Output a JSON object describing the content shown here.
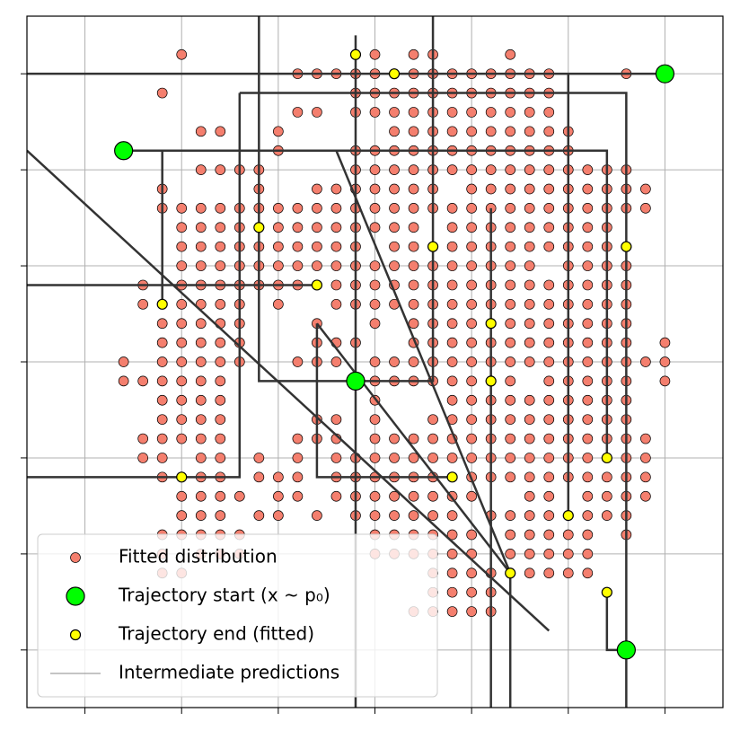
{
  "chart_data": {
    "type": "scatter",
    "xlim": [
      -18,
      18
    ],
    "ylim": [
      -18,
      18
    ],
    "xticks": [
      -15,
      -10,
      -5,
      0,
      5,
      10,
      15
    ],
    "yticks": [
      -15,
      -10,
      -5,
      0,
      5,
      10,
      15
    ],
    "grid": true,
    "legend": "lower left",
    "series": [
      {
        "name": "Fitted distribution",
        "color": "#f47f6e",
        "rows": [
          {
            "y": 16,
            "x": [
              -10,
              0,
              2,
              3,
              7
            ]
          },
          {
            "y": 15,
            "x": [
              -4,
              -3,
              -2,
              -1,
              0,
              2,
              3,
              4,
              5,
              6,
              7,
              8,
              9,
              13
            ]
          },
          {
            "y": 14,
            "x": [
              -11,
              -1,
              0,
              1,
              2,
              3,
              4,
              5,
              6,
              7,
              8,
              9
            ]
          },
          {
            "y": 13,
            "x": [
              -4,
              -3,
              -1,
              0,
              1,
              2,
              3,
              4,
              5,
              6,
              7,
              8,
              9
            ]
          },
          {
            "y": 12,
            "x": [
              -9,
              -8,
              -5,
              1,
              2,
              3,
              4,
              5,
              6,
              7,
              8,
              9,
              10
            ]
          },
          {
            "y": 11,
            "x": [
              -5,
              -1,
              0,
              1,
              2,
              3,
              4,
              5,
              6,
              7,
              8,
              9,
              10
            ]
          },
          {
            "y": 10,
            "x": [
              -9,
              -8,
              -7,
              -6,
              -1,
              0,
              1,
              2,
              3,
              4,
              5,
              6,
              7,
              8,
              9,
              10,
              11,
              12,
              13
            ]
          },
          {
            "y": 9,
            "x": [
              -11,
              -6,
              -3,
              -2,
              -1,
              0,
              1,
              2,
              3,
              5,
              6,
              7,
              8,
              9,
              10,
              11,
              12,
              13,
              14
            ]
          },
          {
            "y": 8,
            "x": [
              -11,
              -10,
              -9,
              -8,
              -7,
              -6,
              -5,
              -4,
              -3,
              -2,
              -1,
              0,
              1,
              2,
              3,
              4,
              5,
              6,
              7,
              8,
              9,
              10,
              11,
              12,
              13,
              14
            ]
          },
          {
            "y": 7,
            "x": [
              -10,
              -9,
              -8,
              -7,
              -5,
              -4,
              -3,
              -2,
              -1,
              0,
              1,
              2,
              4,
              5,
              6,
              7,
              8,
              9,
              10,
              11,
              12
            ]
          },
          {
            "y": 6,
            "x": [
              -10,
              -9,
              -8,
              -7,
              -6,
              -5,
              -4,
              -3,
              -2,
              -1,
              1,
              2,
              4,
              5,
              6,
              7,
              8,
              9,
              10,
              11,
              12,
              13
            ]
          },
          {
            "y": 5,
            "x": [
              -10,
              -9,
              -8,
              -7,
              -6,
              -5,
              -4,
              -3,
              -2,
              -1,
              0,
              1,
              2,
              3,
              4,
              5,
              6,
              7,
              8,
              10,
              11,
              12,
              13
            ]
          },
          {
            "y": 4,
            "x": [
              -12,
              -10,
              -9,
              -8,
              -7,
              -6,
              -5,
              -4,
              -2,
              -1,
              0,
              1,
              2,
              3,
              4,
              5,
              6,
              7,
              8,
              9,
              10,
              11,
              12,
              13
            ]
          },
          {
            "y": 3,
            "x": [
              -12,
              -10,
              -9,
              -8,
              -7,
              -5,
              -2,
              -1,
              0,
              1,
              2,
              3,
              4,
              5,
              6,
              7,
              8,
              9,
              10,
              11,
              12,
              13
            ]
          },
          {
            "y": 2,
            "x": [
              -11,
              -10,
              -9,
              -8,
              -7,
              -3,
              0,
              2,
              3,
              4,
              5,
              7,
              8,
              9,
              10,
              11,
              12,
              13
            ]
          },
          {
            "y": 1,
            "x": [
              -11,
              -10,
              -9,
              -8,
              -7,
              -3,
              -2,
              -1,
              2,
              3,
              4,
              5,
              6,
              7,
              8,
              9,
              10,
              11,
              12,
              13,
              15
            ]
          },
          {
            "y": 0,
            "x": [
              -13,
              -11,
              -10,
              -9,
              -8,
              -7,
              -4,
              -3,
              -2,
              0,
              1,
              2,
              3,
              4,
              5,
              6,
              7,
              8,
              9,
              10,
              11,
              12,
              13,
              14,
              15
            ]
          },
          {
            "y": -1,
            "x": [
              -13,
              -12,
              -11,
              -10,
              -9,
              -8,
              0,
              1,
              2,
              3,
              4,
              5,
              6,
              7,
              9,
              10,
              11,
              12,
              13,
              15
            ]
          },
          {
            "y": -2,
            "x": [
              -11,
              -10,
              -9,
              -8,
              0,
              4,
              5,
              6,
              7,
              8,
              9,
              10,
              11,
              12,
              13
            ]
          },
          {
            "y": -3,
            "x": [
              -11,
              -10,
              -9,
              -8,
              -3,
              -2,
              0,
              3,
              4,
              5,
              6,
              7,
              8,
              9,
              10,
              11,
              12,
              13
            ]
          },
          {
            "y": -4,
            "x": [
              -12,
              -11,
              -10,
              -9,
              -8,
              -4,
              -3,
              -2,
              0,
              1,
              2,
              3,
              4,
              5,
              6,
              7,
              8,
              9,
              10,
              11,
              12,
              13,
              14
            ]
          },
          {
            "y": -5,
            "x": [
              -12,
              -11,
              -9,
              -8,
              -6,
              -4,
              -2,
              -1,
              0,
              1,
              2,
              3,
              4,
              5,
              6,
              7,
              8,
              9,
              10,
              11,
              13,
              14
            ]
          },
          {
            "y": -6,
            "x": [
              -11,
              -9,
              -8,
              -6,
              -5,
              -4,
              -2,
              -1,
              0,
              1,
              2,
              3,
              5,
              6,
              7,
              8,
              9,
              10,
              11,
              12,
              13,
              14
            ]
          },
          {
            "y": -7,
            "x": [
              -10,
              -9,
              -8,
              -7,
              -5,
              -4,
              -2,
              -1,
              0,
              1,
              2,
              3,
              4,
              5,
              8,
              9,
              11,
              12,
              13,
              14
            ]
          },
          {
            "y": -8,
            "x": [
              -10,
              -9,
              -8,
              -6,
              -5,
              -3,
              -1,
              0,
              1,
              2,
              3,
              4,
              6,
              7,
              8,
              9,
              11,
              12,
              13
            ]
          },
          {
            "y": -9,
            "x": [
              -11,
              -10,
              -9,
              -8,
              -7,
              0,
              1,
              2,
              3,
              4,
              5,
              7,
              8,
              9,
              10,
              11,
              13
            ]
          },
          {
            "y": -10,
            "x": [
              -11,
              -9,
              -8,
              -7,
              0,
              1,
              2,
              3,
              4,
              5,
              7,
              8,
              9,
              10,
              11
            ]
          },
          {
            "y": -11,
            "x": [
              -11,
              -10,
              3,
              4,
              5,
              6,
              8,
              9,
              10,
              11
            ]
          },
          {
            "y": -12,
            "x": [
              3,
              4,
              5,
              6
            ]
          },
          {
            "y": -13,
            "x": [
              2,
              3,
              4,
              5,
              6
            ]
          }
        ]
      },
      {
        "name": "Trajectory start (x ~ p₀)",
        "color": "#00ff00",
        "x": [
          -13,
          -1,
          15,
          13
        ],
        "y": [
          11,
          -1,
          15,
          -15
        ]
      },
      {
        "name": "Trajectory end (fitted)",
        "color": "#ffff00",
        "x": [
          -1,
          1,
          -6,
          3,
          13,
          -3,
          -11,
          6,
          6,
          -10,
          4,
          12,
          10,
          7,
          12
        ],
        "y": [
          16,
          15,
          7,
          6,
          6,
          4,
          3,
          2,
          -1,
          -6,
          -6,
          -5,
          -8,
          -11,
          -12
        ]
      },
      {
        "name": "Intermediate predictions",
        "color": "#333333",
        "paths": [
          {
            "x": [
              -13,
              12,
              12
            ],
            "y": [
              11,
              11,
              -5
            ]
          },
          {
            "x": [
              -18,
              9
            ],
            "y": [
              11,
              -14
            ]
          },
          {
            "x": [
              -18,
              15
            ],
            "y": [
              15,
              15
            ]
          },
          {
            "x": [
              -7,
              13,
              13
            ],
            "y": [
              14,
              14,
              -18
            ]
          },
          {
            "x": [
              -7,
              -7,
              -18
            ],
            "y": [
              14,
              -6,
              -6
            ]
          },
          {
            "x": [
              -18,
              -3
            ],
            "y": [
              4,
              4
            ]
          },
          {
            "x": [
              -11,
              -11
            ],
            "y": [
              11,
              3
            ]
          },
          {
            "x": [
              -6,
              -6,
              3,
              3
            ],
            "y": [
              18,
              -1,
              -1,
              18
            ]
          },
          {
            "x": [
              -2,
              7
            ],
            "y": [
              11,
              -11
            ]
          },
          {
            "x": [
              -1,
              -1
            ],
            "y": [
              17,
              -18
            ]
          },
          {
            "x": [
              -3,
              -3,
              4
            ],
            "y": [
              2,
              -6,
              -6
            ]
          },
          {
            "x": [
              -3,
              7
            ],
            "y": [
              2,
              -11
            ]
          },
          {
            "x": [
              6,
              6
            ],
            "y": [
              8,
              -18
            ]
          },
          {
            "x": [
              7,
              7
            ],
            "y": [
              -11,
              -18
            ]
          },
          {
            "x": [
              10,
              10
            ],
            "y": [
              15,
              -8
            ]
          },
          {
            "x": [
              12,
              12,
              13
            ],
            "y": [
              -12,
              -15,
              -15
            ]
          }
        ]
      }
    ]
  }
}
